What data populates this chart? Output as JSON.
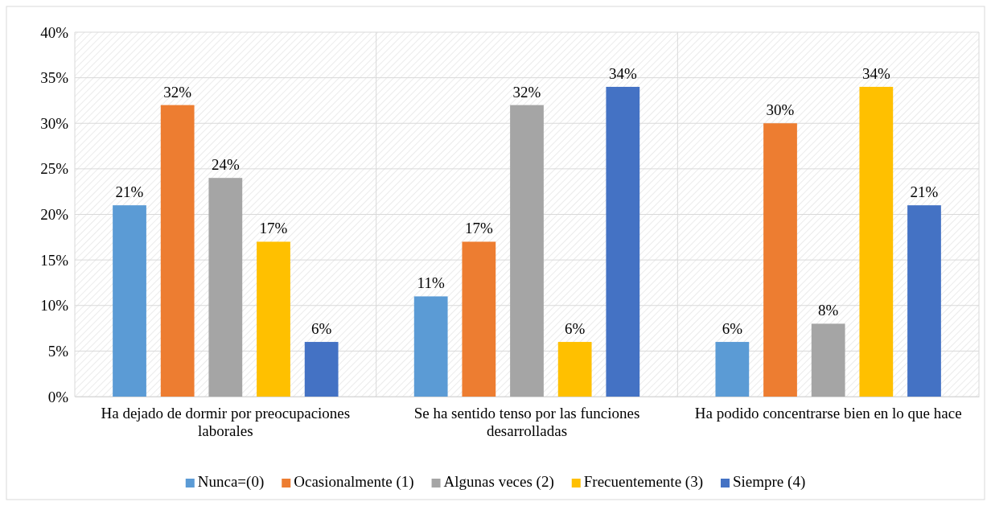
{
  "chart_data": {
    "type": "bar",
    "categories": [
      "Ha dejado de dormir por preocupaciones laborales",
      "Se ha sentido tenso por las funciones desarrolladas",
      "Ha podido concentrarse bien en lo que hace"
    ],
    "series": [
      {
        "name": "Nunca=(0)",
        "color": "#5b9bd5",
        "values": [
          21,
          11,
          6
        ],
        "value_labels": [
          "21%",
          "11%",
          "6%"
        ]
      },
      {
        "name": "Ocasionalmente (1)",
        "color": "#ed7d31",
        "values": [
          32,
          17,
          30
        ],
        "value_labels": [
          "32%",
          "17%",
          "30%"
        ]
      },
      {
        "name": "Algunas veces (2)",
        "color": "#a5a5a5",
        "values": [
          24,
          32,
          8
        ],
        "value_labels": [
          "24%",
          "32%",
          "8%"
        ]
      },
      {
        "name": "Frecuentemente (3)",
        "color": "#ffc000",
        "values": [
          17,
          6,
          34
        ],
        "value_labels": [
          "17%",
          "6%",
          "34%"
        ]
      },
      {
        "name": "Siempre (4)",
        "color": "#4472c4",
        "values": [
          6,
          34,
          21
        ],
        "value_labels": [
          "6%",
          "34%",
          "21%"
        ]
      }
    ],
    "ylim": [
      0,
      40
    ],
    "yticks": [
      {
        "value": 0,
        "label": "0%"
      },
      {
        "value": 5,
        "label": "5%"
      },
      {
        "value": 10,
        "label": "10%"
      },
      {
        "value": 15,
        "label": "15%"
      },
      {
        "value": 20,
        "label": "20%"
      },
      {
        "value": 25,
        "label": "25%"
      },
      {
        "value": 30,
        "label": "30%"
      },
      {
        "value": 35,
        "label": "35%"
      },
      {
        "value": 40,
        "label": "40%"
      }
    ],
    "grid": "y",
    "legend": "bottom"
  }
}
